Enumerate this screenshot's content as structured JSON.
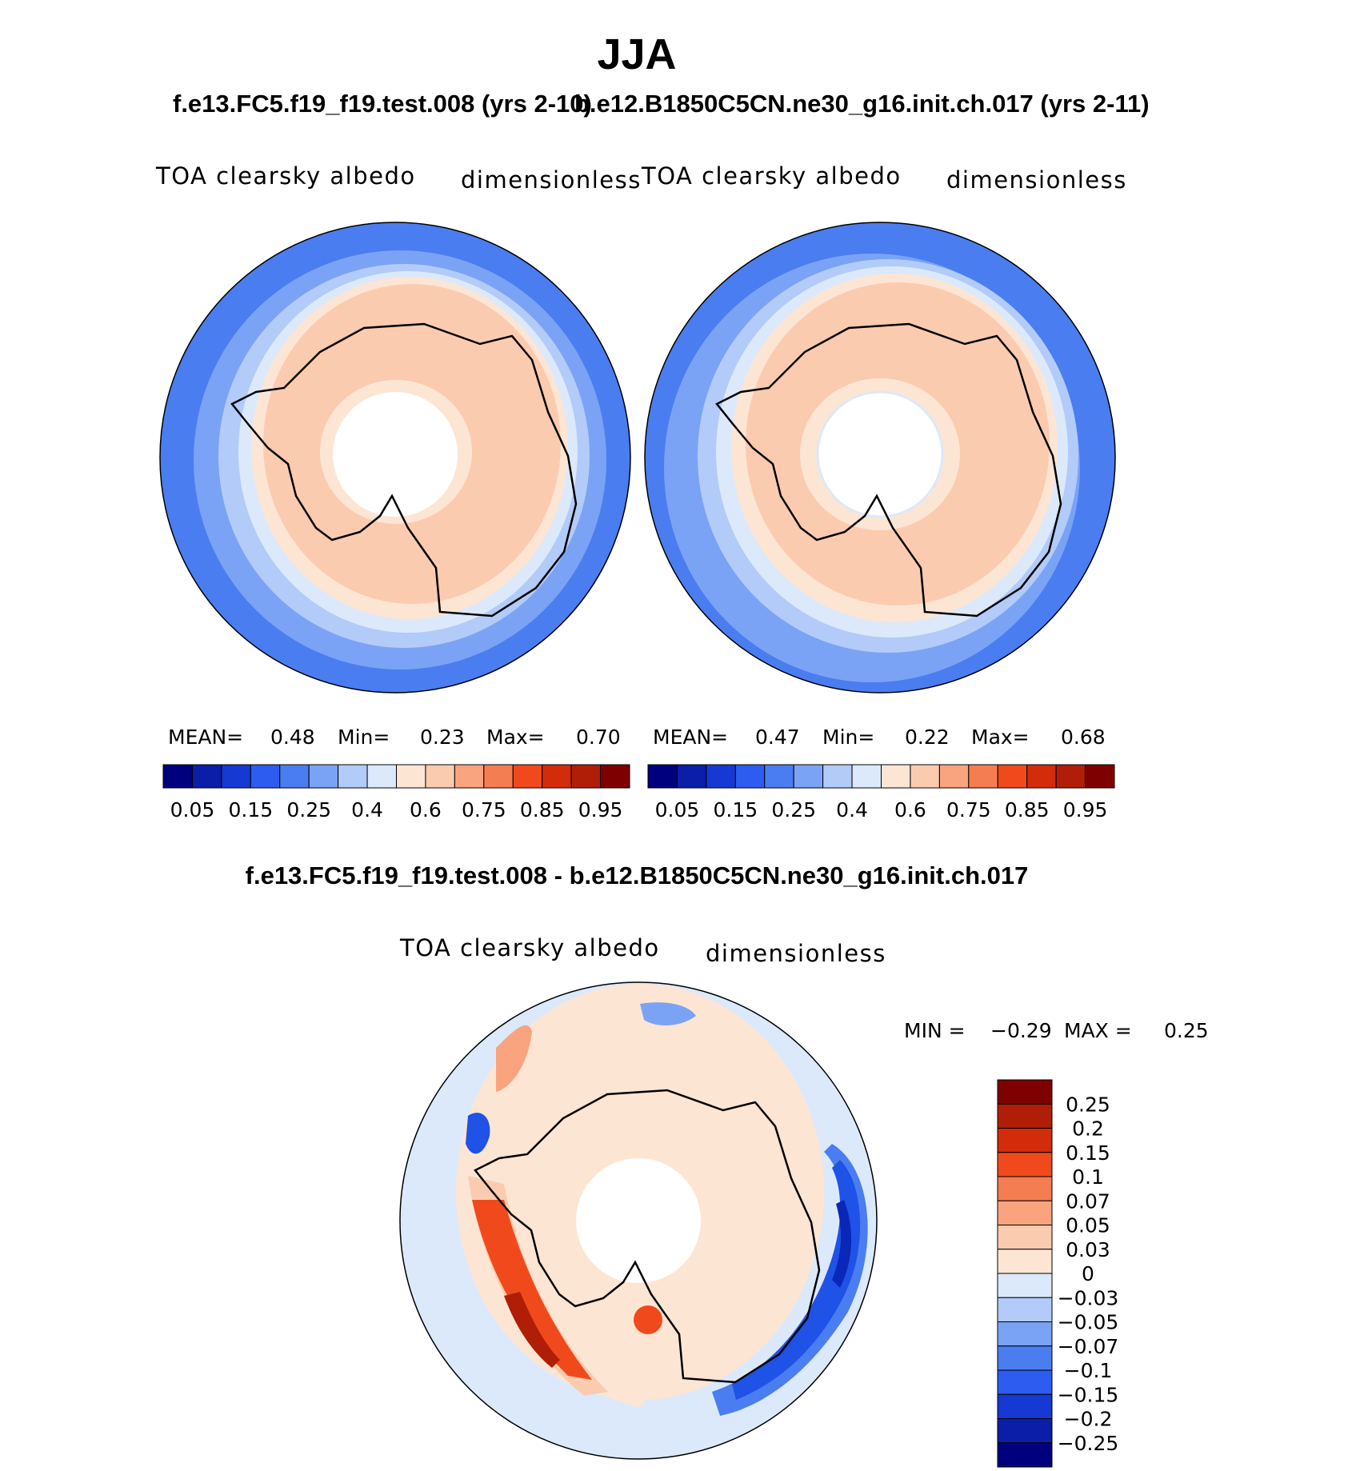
{
  "page": {
    "season": "JJA",
    "top_title": "f.e13.FC5.f19_f19.test.008 (yrs 2-10)",
    "top_title_right": "b.e12.B1850C5CN.ne30_g16.init.ch.017 (yrs 2-11)",
    "diff_title": "f.e13.FC5.f19_f19.test.008 - b.e12.B1850C5CN.ne30_g16.init.ch.017"
  },
  "panels": [
    {
      "variable": "TOA clearsky albedo",
      "units": "dimensionless",
      "mean_label": "MEAN=",
      "mean_value": "0.48",
      "min_label": "Min=",
      "min_value": "0.23",
      "max_label": "Max=",
      "max_value": "0.70"
    },
    {
      "variable": "TOA clearsky albedo",
      "units": "dimensionless",
      "mean_label": "MEAN=",
      "mean_value": "0.47",
      "min_label": "Min=",
      "min_value": "0.22",
      "max_label": "Max=",
      "max_value": "0.68"
    }
  ],
  "diff_panel": {
    "variable": "TOA clearsky albedo",
    "units": "dimensionless",
    "min_label": "MIN =",
    "min_value": "−0.29",
    "max_label": "MAX =",
    "max_value": "0.25"
  },
  "colors": {
    "ocean_outer": "#4a7df0",
    "ocean_mid": "#7aa3f5",
    "ocean_light": "#b2cbf8",
    "ocean_pale": "#dbe9fb",
    "land_cream": "#fde5d4",
    "land_peach": "#fbcbb0",
    "diff_bg": "#dbe9fb",
    "diff_cream": "#fde5d4",
    "diff_red": "#f04a1c",
    "diff_red_dark": "#b01e08",
    "diff_blue": "#1f52e6",
    "diff_blue_dark": "#0b27b8"
  },
  "chart_data": [
    {
      "type": "heatmap",
      "projection": "south polar stereographic",
      "title": "f.e13.FC5.f19_f19.test.008 (yrs 2-10)",
      "variable": "TOA clearsky albedo",
      "units": "dimensionless",
      "mean": 0.48,
      "min": 0.23,
      "max": 0.7,
      "colorbar_levels": [
        0.05,
        0.1,
        0.15,
        0.2,
        0.25,
        0.3,
        0.4,
        0.5,
        0.6,
        0.65,
        0.75,
        0.8,
        0.85,
        0.9,
        0.95
      ],
      "colorbar_labels": [
        "0.05",
        "0.15",
        "0.25",
        "0.4",
        "0.6",
        "0.75",
        "0.85",
        "0.95"
      ],
      "colorbar_colors": [
        "#00007f",
        "#0a1ea8",
        "#1539d2",
        "#2c5cf0",
        "#4a7df0",
        "#7aa3f5",
        "#b2cbf8",
        "#dbe9fb",
        "#fde5d4",
        "#fbcbb0",
        "#f9a47e",
        "#f57d52",
        "#f04a1c",
        "#d22c0a",
        "#b01e08",
        "#7f0000"
      ]
    },
    {
      "type": "heatmap",
      "projection": "south polar stereographic",
      "title": "b.e12.B1850C5CN.ne30_g16.init.ch.017 (yrs 2-11)",
      "variable": "TOA clearsky albedo",
      "units": "dimensionless",
      "mean": 0.47,
      "min": 0.22,
      "max": 0.68,
      "colorbar_levels": [
        0.05,
        0.1,
        0.15,
        0.2,
        0.25,
        0.3,
        0.4,
        0.5,
        0.6,
        0.65,
        0.75,
        0.8,
        0.85,
        0.9,
        0.95
      ],
      "colorbar_labels": [
        "0.05",
        "0.15",
        "0.25",
        "0.4",
        "0.6",
        "0.75",
        "0.85",
        "0.95"
      ],
      "colorbar_colors": [
        "#00007f",
        "#0a1ea8",
        "#1539d2",
        "#2c5cf0",
        "#4a7df0",
        "#7aa3f5",
        "#b2cbf8",
        "#dbe9fb",
        "#fde5d4",
        "#fbcbb0",
        "#f9a47e",
        "#f57d52",
        "#f04a1c",
        "#d22c0a",
        "#b01e08",
        "#7f0000"
      ]
    },
    {
      "type": "heatmap",
      "projection": "south polar stereographic",
      "title": "f.e13.FC5.f19_f19.test.008 - b.e12.B1850C5CN.ne30_g16.init.ch.017",
      "variable": "TOA clearsky albedo",
      "units": "dimensionless",
      "min": -0.29,
      "max": 0.25,
      "colorbar_labels": [
        "0.25",
        "0.2",
        "0.15",
        "0.1",
        "0.07",
        "0.05",
        "0.03",
        "0",
        "−0.03",
        "−0.05",
        "−0.07",
        "−0.1",
        "−0.15",
        "−0.2",
        "−0.25"
      ],
      "colorbar_colors": [
        "#7f0000",
        "#b01e08",
        "#d22c0a",
        "#f04a1c",
        "#f57d52",
        "#f9a47e",
        "#fbcbb0",
        "#fde5d4",
        "#dbe9fb",
        "#b2cbf8",
        "#7aa3f5",
        "#4a7df0",
        "#2c5cf0",
        "#1539d2",
        "#0a1ea8",
        "#00007f"
      ]
    }
  ]
}
